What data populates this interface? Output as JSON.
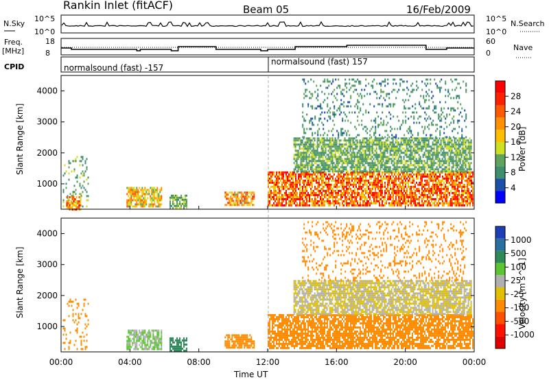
{
  "header": {
    "station": "Rankin Inlet (fitACF)",
    "beam": "Beam 05",
    "date": "16/Feb/2009"
  },
  "top_panels": {
    "nsky": {
      "label": "N.Sky",
      "yticks": [
        "10^5",
        "10^0"
      ],
      "right_label": "N.Search",
      "right_yticks": [
        "10^5",
        "10^0"
      ]
    },
    "freq": {
      "label_line1": "Freq.",
      "label_line2": "[MHz]",
      "yticks": [
        "18",
        "8"
      ],
      "right_label": "Nave",
      "right_yticks": [
        "60",
        "0"
      ]
    },
    "cpid": {
      "label": "CPID",
      "segments": [
        {
          "text": "normalsound (fast) -157",
          "start_hour": 0
        },
        {
          "text": "normalsound (fast) 157",
          "start_hour": 12
        }
      ]
    }
  },
  "colors": {
    "power_scale": [
      "#0000ff",
      "#1b4fa8",
      "#3f8f6e",
      "#5fa35f",
      "#cfe020",
      "#ffbf00",
      "#ff9000",
      "#ff5a00",
      "#ff2000",
      "#ff0000"
    ],
    "velocity_scale": [
      "#1c3fb8",
      "#2a6fa0",
      "#2f8a5a",
      "#5cc630",
      "#b0b0b0",
      "#e0c000",
      "#ff8c00",
      "#ff5000",
      "#ff1000",
      "#e00000"
    ]
  },
  "chart_data": [
    {
      "type": "heatmap",
      "name": "power",
      "xlabel": "",
      "ylabel": "Slant Range [km]",
      "xlim": [
        0,
        24
      ],
      "ylim": [
        180,
        4500
      ],
      "yticks": [
        "1000",
        "2000",
        "3000",
        "4000"
      ],
      "colorbar_label": "Power [dB]",
      "colorbar_ticks": [
        "4",
        "8",
        "12",
        "16",
        "20",
        "24",
        "28"
      ],
      "colorbar_range": [
        0,
        30
      ],
      "echo_regions": [
        {
          "hours": [
            0.1,
            1.6
          ],
          "range_km": [
            250,
            1900
          ],
          "value": 10
        },
        {
          "hours": [
            0.3,
            1.1
          ],
          "range_km": [
            200,
            600
          ],
          "value": 20
        },
        {
          "hours": [
            3.8,
            5.8
          ],
          "range_km": [
            250,
            900
          ],
          "value": 16
        },
        {
          "hours": [
            6.3,
            7.3
          ],
          "range_km": [
            250,
            650
          ],
          "value": 10
        },
        {
          "hours": [
            9.5,
            11.2
          ],
          "range_km": [
            300,
            750
          ],
          "value": 18
        },
        {
          "hours": [
            12.0,
            23.9
          ],
          "range_km": [
            300,
            1400
          ],
          "value": 22
        },
        {
          "hours": [
            13.5,
            23.8
          ],
          "range_km": [
            1400,
            2500
          ],
          "value": 10
        },
        {
          "hours": [
            14.0,
            23.5
          ],
          "range_km": [
            2500,
            4400
          ],
          "value": 8
        }
      ]
    },
    {
      "type": "heatmap",
      "name": "velocity",
      "xlabel": "Time UT",
      "ylabel": "Slant Range [km]",
      "xlim": [
        0,
        24
      ],
      "ylim": [
        180,
        4500
      ],
      "xticks": [
        "00:00",
        "04:00",
        "08:00",
        "12:00",
        "16:00",
        "20:00",
        "00:00"
      ],
      "yticks": [
        "1000",
        "2000",
        "3000",
        "4000"
      ],
      "colorbar_label": "Velocity [m s^-1]",
      "colorbar_ticks": [
        "1000",
        "500",
        "100",
        "25",
        "-25",
        "-100",
        "-500",
        "-1000"
      ],
      "echo_regions": [
        {
          "hours": [
            0.1,
            1.6
          ],
          "range_km": [
            250,
            1900
          ],
          "value": -100
        },
        {
          "hours": [
            3.8,
            5.8
          ],
          "range_km": [
            250,
            900
          ],
          "value": 25
        },
        {
          "hours": [
            6.3,
            7.3
          ],
          "range_km": [
            250,
            650
          ],
          "value": 100
        },
        {
          "hours": [
            9.5,
            11.2
          ],
          "range_km": [
            300,
            750
          ],
          "value": -100
        },
        {
          "hours": [
            12.0,
            23.9
          ],
          "range_km": [
            300,
            1400
          ],
          "value": -100
        },
        {
          "hours": [
            13.5,
            23.8
          ],
          "range_km": [
            1400,
            2500
          ],
          "value": -25
        },
        {
          "hours": [
            14.0,
            23.5
          ],
          "range_km": [
            2500,
            4400
          ],
          "value": -100
        }
      ]
    }
  ]
}
